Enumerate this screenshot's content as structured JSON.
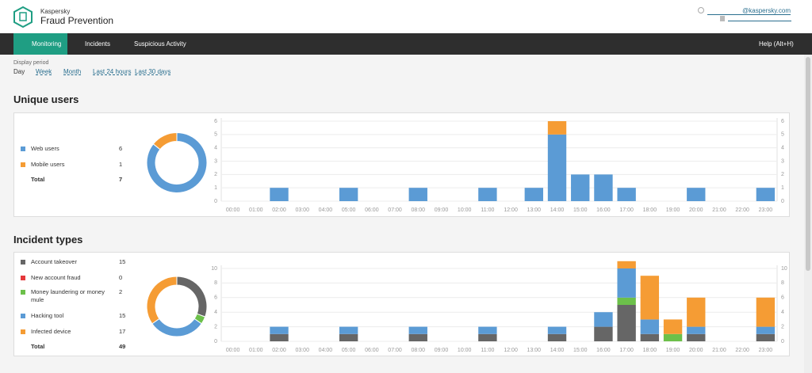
{
  "header": {
    "brand": "Kaspersky",
    "product": "Fraud Prevention",
    "user_email": "@kaspersky.com"
  },
  "nav": {
    "items": [
      "Monitoring",
      "Incidents",
      "Suspicious Activity"
    ],
    "help": "Help (Alt+H)"
  },
  "display_period": {
    "label": "Display period",
    "options": [
      "Day",
      "Week",
      "Month",
      "Last 24 hours",
      "Last 30 days"
    ]
  },
  "sections": [
    {
      "title": "Unique users",
      "legend": [
        {
          "name": "Web users",
          "color": "#5b9bd5",
          "value": 6,
          "hourly": [
            0,
            0,
            1,
            0,
            0,
            1,
            0,
            0,
            1,
            0,
            0,
            1,
            0,
            1,
            5,
            2,
            2,
            1,
            0,
            0,
            1,
            0,
            0,
            1
          ]
        },
        {
          "name": "Mobile users",
          "color": "#f59c34",
          "value": 1,
          "hourly": [
            0,
            0,
            0,
            0,
            0,
            0,
            0,
            0,
            0,
            0,
            0,
            0,
            0,
            0,
            1,
            0,
            0,
            0,
            0,
            0,
            0,
            0,
            0,
            0
          ]
        }
      ],
      "total_label": "Total",
      "total": 7,
      "chart": {
        "type": "bar",
        "stacked": true,
        "categories": [
          "00:00",
          "01:00",
          "02:00",
          "03:00",
          "04:00",
          "05:00",
          "06:00",
          "07:00",
          "08:00",
          "09:00",
          "10:00",
          "11:00",
          "12:00",
          "13:00",
          "14:00",
          "15:00",
          "16:00",
          "17:00",
          "18:00",
          "19:00",
          "20:00",
          "21:00",
          "22:00",
          "23:00"
        ],
        "ylim": [
          0,
          6
        ],
        "yticks": [
          0,
          1,
          2,
          3,
          4,
          5,
          6
        ]
      }
    },
    {
      "title": "Incident types",
      "legend": [
        {
          "name": "Account takeover",
          "color": "#666666",
          "value": 15,
          "hourly": [
            0,
            0,
            1,
            0,
            0,
            1,
            0,
            0,
            1,
            0,
            0,
            1,
            0,
            0,
            1,
            0,
            2,
            5,
            1,
            0,
            1,
            0,
            0,
            1
          ]
        },
        {
          "name": "New account fraud",
          "color": "#e5383b",
          "value": 0,
          "hourly": [
            0,
            0,
            0,
            0,
            0,
            0,
            0,
            0,
            0,
            0,
            0,
            0,
            0,
            0,
            0,
            0,
            0,
            0,
            0,
            0,
            0,
            0,
            0,
            0
          ]
        },
        {
          "name": "Money laundering or money mule",
          "color": "#6cc04a",
          "value": 2,
          "hourly": [
            0,
            0,
            0,
            0,
            0,
            0,
            0,
            0,
            0,
            0,
            0,
            0,
            0,
            0,
            0,
            0,
            0,
            1,
            0,
            1,
            0,
            0,
            0,
            0
          ]
        },
        {
          "name": "Hacking tool",
          "color": "#5b9bd5",
          "value": 15,
          "hourly": [
            0,
            0,
            1,
            0,
            0,
            1,
            0,
            0,
            1,
            0,
            0,
            1,
            0,
            0,
            1,
            0,
            2,
            4,
            2,
            0,
            1,
            0,
            0,
            1
          ]
        },
        {
          "name": "Infected device",
          "color": "#f59c34",
          "value": 17,
          "hourly": [
            0,
            0,
            0,
            0,
            0,
            0,
            0,
            0,
            0,
            0,
            0,
            0,
            0,
            0,
            0,
            0,
            0,
            1,
            6,
            2,
            4,
            0,
            0,
            4
          ]
        }
      ],
      "total_label": "Total",
      "total": 49,
      "chart": {
        "type": "bar",
        "stacked": true,
        "categories": [
          "00:00",
          "01:00",
          "02:00",
          "03:00",
          "04:00",
          "05:00",
          "06:00",
          "07:00",
          "08:00",
          "09:00",
          "10:00",
          "11:00",
          "12:00",
          "13:00",
          "14:00",
          "15:00",
          "16:00",
          "17:00",
          "18:00",
          "19:00",
          "20:00",
          "21:00",
          "22:00",
          "23:00"
        ],
        "ylim": [
          0,
          10
        ],
        "yticks": [
          0,
          2,
          4,
          6,
          8,
          10
        ]
      }
    }
  ]
}
